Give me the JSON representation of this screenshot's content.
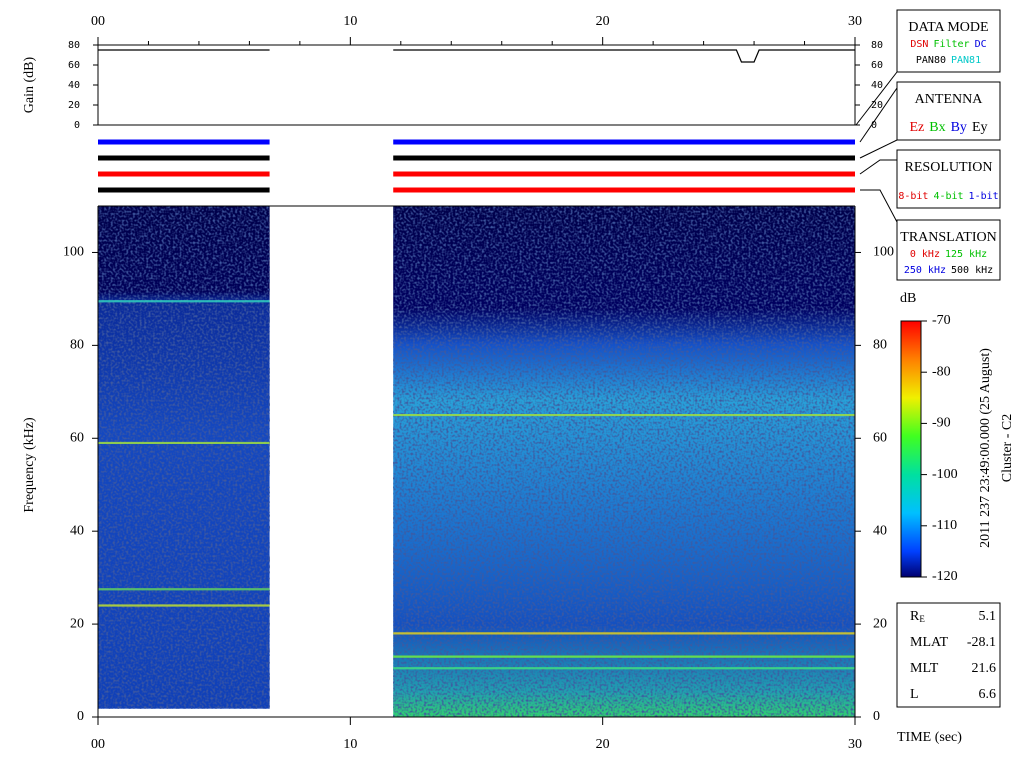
{
  "chart_data": [
    {
      "type": "line",
      "ylabel": "Gain (dB)",
      "xlim": [
        0,
        30
      ],
      "xticks": [
        {
          "value": 0,
          "label": "00"
        },
        10,
        20,
        30
      ],
      "x_minor_ticks": [
        2,
        4,
        6,
        8,
        12,
        14,
        16,
        18,
        22,
        24,
        26,
        28
      ],
      "ylim": [
        0,
        80
      ],
      "yticks": [
        0,
        20,
        40,
        60,
        80
      ],
      "series": [
        {
          "color": "#000000",
          "x": [
            0,
            6.8,
            9,
            11.7,
            25.3,
            25.5,
            26.0,
            26.2,
            30
          ],
          "values": [
            75,
            75,
            null,
            75,
            75,
            63,
            63,
            75,
            75
          ]
        }
      ]
    },
    {
      "type": "mode-bars",
      "xlim": [
        0,
        30
      ],
      "rows": [
        {
          "segments": [
            {
              "x": [
                0,
                6.8
              ],
              "color": "#0000ff"
            },
            {
              "x": [
                11.7,
                30
              ],
              "color": "#0000ff"
            }
          ]
        },
        {
          "segments": [
            {
              "x": [
                0,
                6.8
              ],
              "color": "#000000"
            },
            {
              "x": [
                11.7,
                30
              ],
              "color": "#000000"
            }
          ]
        },
        {
          "segments": [
            {
              "x": [
                0,
                6.8
              ],
              "color": "#ff0000"
            },
            {
              "x": [
                11.7,
                30
              ],
              "color": "#ff0000"
            }
          ]
        },
        {
          "segments": [
            {
              "x": [
                0,
                6.8
              ],
              "color": "#000000"
            },
            {
              "x": [
                11.7,
                30
              ],
              "color": "#ff0000"
            }
          ]
        }
      ]
    },
    {
      "type": "spectrogram",
      "xlabel": "TIME (sec)",
      "ylabel": "Frequency (kHz)",
      "xlim": [
        0,
        30
      ],
      "xticks": [
        {
          "value": 0,
          "label": "00"
        },
        10,
        20,
        30
      ],
      "ylim": [
        0,
        110
      ],
      "yticks": [
        0,
        20,
        40,
        60,
        80,
        100
      ],
      "coverage": [
        {
          "x": [
            0,
            6.8
          ],
          "y": [
            1.8,
            110
          ]
        },
        {
          "x": [
            11.7,
            30
          ],
          "y": [
            0,
            110
          ]
        }
      ],
      "lines": [
        {
          "x": [
            0,
            6.8
          ],
          "y": 89.5,
          "color": "#30d0c0"
        },
        {
          "x": [
            0,
            6.8
          ],
          "y": 59,
          "color": "#a0e040"
        },
        {
          "x": [
            0,
            6.8
          ],
          "y": 27.5,
          "color": "#60d060"
        },
        {
          "x": [
            0,
            6.8
          ],
          "y": 24,
          "color": "#c0e030"
        },
        {
          "x": [
            11.7,
            30
          ],
          "y": 65,
          "color": "#a0e040"
        },
        {
          "x": [
            11.7,
            30
          ],
          "y": 18,
          "color": "#e0d020"
        },
        {
          "x": [
            11.7,
            30
          ],
          "y": 13,
          "color": "#70f040"
        },
        {
          "x": [
            11.7,
            30
          ],
          "y": 10.5,
          "color": "#40e080"
        }
      ],
      "colorbar": {
        "label": "dB",
        "ylim": [
          -120,
          -70
        ],
        "yticks": [
          -70,
          -80,
          -90,
          -100,
          -110,
          -120
        ]
      }
    }
  ],
  "mode_legend": [
    {
      "title": "DATA MODE",
      "rows": [
        [
          {
            "text": "DSN",
            "color": "#e00000"
          },
          {
            "text": "Filter",
            "color": "#00c000"
          },
          {
            "text": "DC",
            "color": "#0000e0"
          }
        ],
        [
          {
            "text": "PAN80",
            "color": "#000000"
          },
          {
            "text": "PAN81",
            "color": "#00c8c8"
          }
        ]
      ]
    },
    {
      "title": "ANTENNA",
      "rows": [
        [
          {
            "text": "Ez",
            "color": "#e00000"
          },
          {
            "text": "Bx",
            "color": "#00c000"
          },
          {
            "text": "By",
            "color": "#0000e0"
          },
          {
            "text": "Ey",
            "color": "#000000"
          }
        ]
      ]
    },
    {
      "title": "RESOLUTION",
      "rows": [
        [
          {
            "text": "8-bit",
            "color": "#e00000"
          },
          {
            "text": "4-bit",
            "color": "#00c000"
          },
          {
            "text": "1-bit",
            "color": "#0000e0"
          }
        ]
      ]
    },
    {
      "title": "TRANSLATION",
      "rows": [
        [
          {
            "text": "0 kHz",
            "color": "#e00000"
          },
          {
            "text": "125 kHz",
            "color": "#00c000"
          }
        ],
        [
          {
            "text": "250 kHz",
            "color": "#0000e0"
          },
          {
            "text": "500 kHz",
            "color": "#000000"
          }
        ]
      ]
    }
  ],
  "timestamp": "2011 237 23:49:00.000 (25 August)",
  "spacecraft": "Cluster - C2",
  "orbit": [
    {
      "label": "R",
      "sub": "E",
      "value": 5.1
    },
    {
      "label": "MLAT",
      "value": -28.1
    },
    {
      "label": "MLT",
      "value": 21.6
    },
    {
      "label": "L",
      "value": 6.6
    }
  ]
}
